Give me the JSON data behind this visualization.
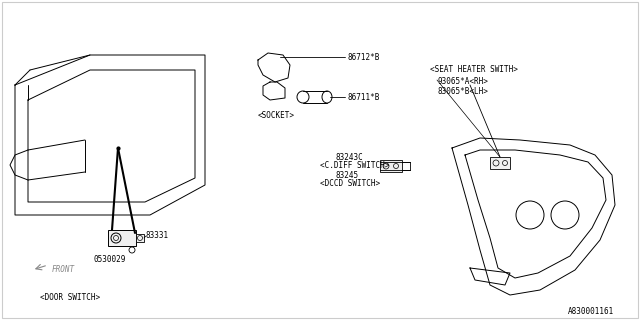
{
  "bg_color": "#ffffff",
  "lc": "#000000",
  "tc": "#000000",
  "part_number_label": "A830001161",
  "door_switch_label": "<DOOR SWITCH>",
  "socket_label": "<SOCKET>",
  "seat_heater_label": "<SEAT HEATER SWITH>",
  "cdiff_label": "<C.DIFF SWITCH>",
  "dccd_label": "<DCCD SWITCH>",
  "part_83331": "83331",
  "part_0530029": "0530029",
  "part_86712B": "86712*B",
  "part_86711B": "86711*B",
  "part_83243C": "83243C",
  "part_83245": "83245",
  "part_93065A": "93065*A<RH>",
  "part_83065B": "83065*B<LH>",
  "front_label": "FRONT"
}
